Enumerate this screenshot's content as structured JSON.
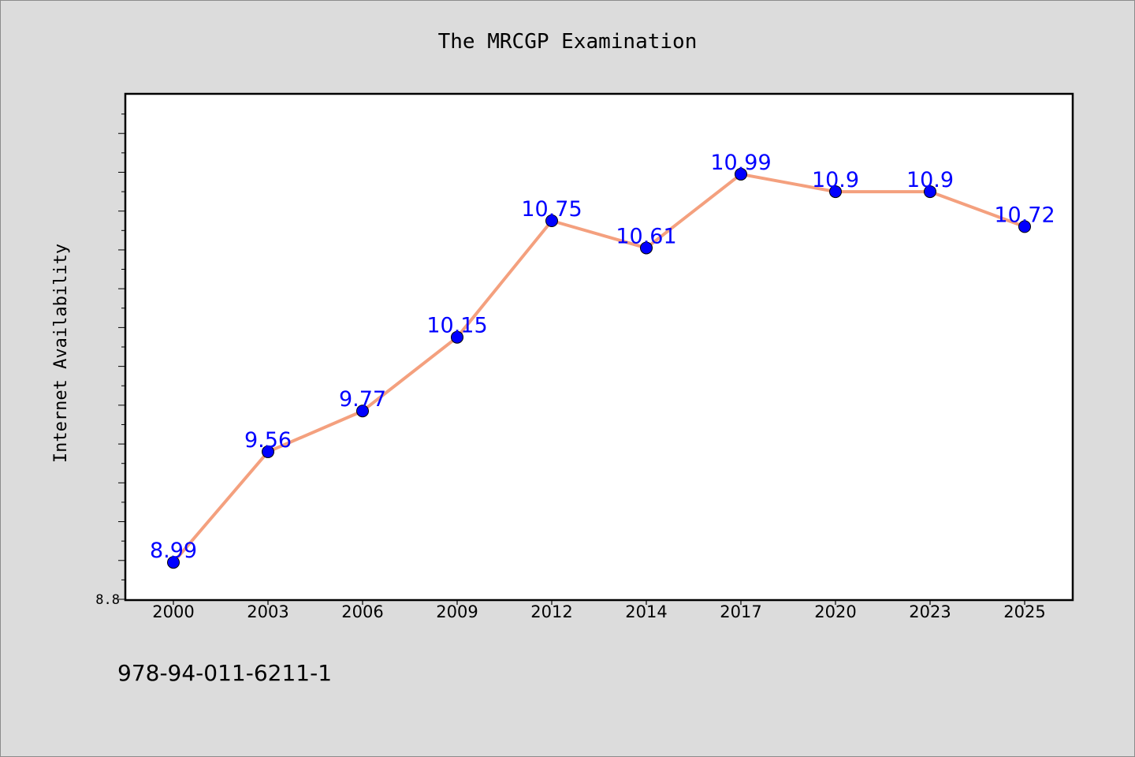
{
  "chart_data": {
    "type": "line",
    "title": "The MRCGP Examination",
    "ylabel": "Internet Availability",
    "xlabel": "",
    "categories": [
      "2000",
      "2003",
      "2006",
      "2009",
      "2012",
      "2014",
      "2017",
      "2020",
      "2023",
      "2025"
    ],
    "values": [
      8.99,
      9.56,
      9.77,
      10.15,
      10.75,
      10.61,
      10.99,
      10.9,
      10.9,
      10.72
    ],
    "data_labels": [
      "8.99",
      "9.56",
      "9.77",
      "10.15",
      "10.75",
      "10.61",
      "10.99",
      "10.9",
      "10.9",
      "10.72"
    ],
    "ylim": [
      8.8,
      11.4
    ],
    "y_tick_label": "8.8",
    "grid": false,
    "line_color": "#f4a07e",
    "marker_color": "#0000ff",
    "label_color": "#0000ff"
  },
  "footer": {
    "isbn": "978-94-011-6211-1"
  }
}
